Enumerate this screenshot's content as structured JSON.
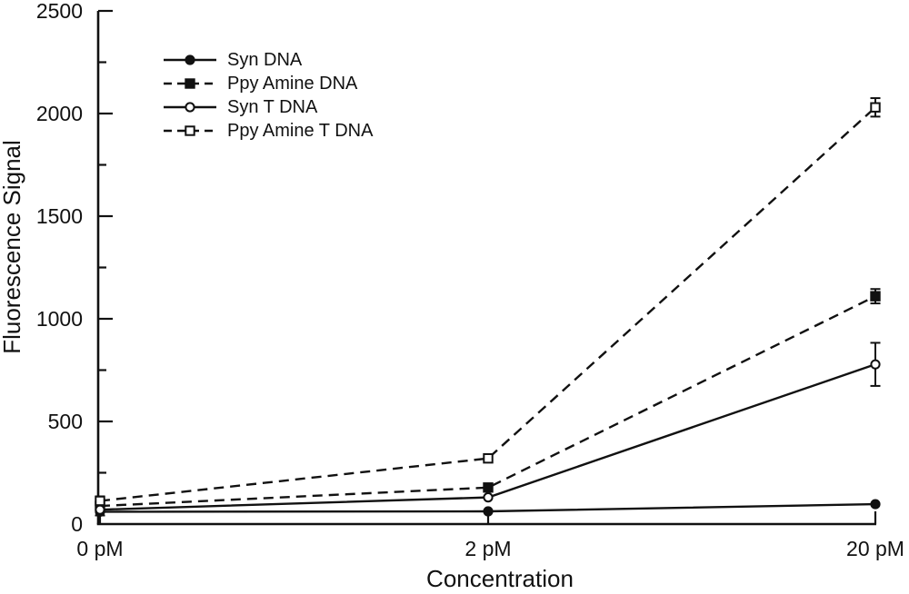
{
  "figure": {
    "background": "#ffffff",
    "foreground": "#111111"
  },
  "chart_data": {
    "type": "line",
    "title": "",
    "xlabel": "Concentration",
    "ylabel": "Fluorescence Signal",
    "categories": [
      "0 pM",
      "2 pM",
      "20 pM"
    ],
    "ylim": [
      0,
      2500
    ],
    "yticks": [
      0,
      500,
      1000,
      1500,
      2000,
      2500
    ],
    "ytick_minor_step": 250,
    "grid": false,
    "legend_position": "upper-left-inside",
    "series": [
      {
        "name": "Syn DNA",
        "line": "solid",
        "marker": "circle",
        "fill": "filled",
        "values": [
          60,
          62,
          97
        ],
        "errors": [
          18,
          0,
          0
        ]
      },
      {
        "name": "Ppy Amine DNA",
        "line": "dashed",
        "marker": "square",
        "fill": "filled",
        "values": [
          88,
          178,
          1110
        ],
        "errors": [
          15,
          0,
          35
        ]
      },
      {
        "name": "Syn T DNA",
        "line": "solid",
        "marker": "circle",
        "fill": "open",
        "values": [
          70,
          130,
          778
        ],
        "errors": [
          0,
          0,
          105
        ]
      },
      {
        "name": "Ppy Amine T DNA",
        "line": "dashed",
        "marker": "square",
        "fill": "open",
        "values": [
          113,
          320,
          2030
        ],
        "errors": [
          22,
          0,
          45
        ]
      }
    ]
  }
}
